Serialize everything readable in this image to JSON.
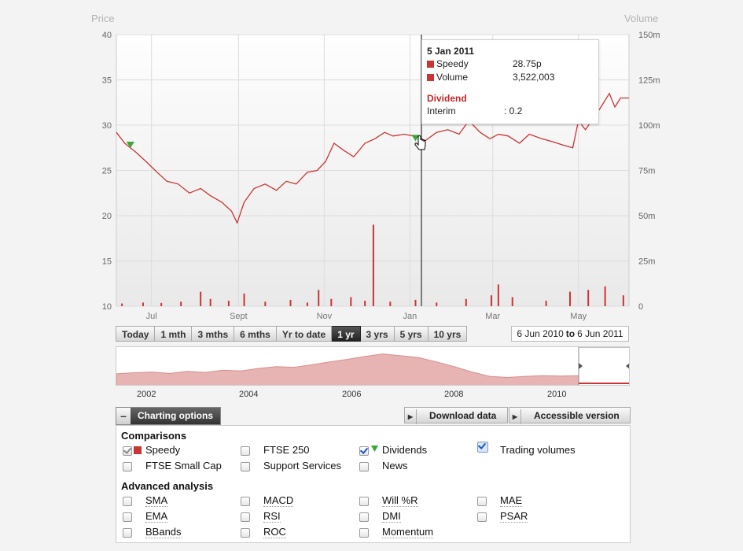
{
  "chart_data": {
    "type": "line",
    "title": "",
    "ylabel": "Price",
    "ylabel_right": "Volume",
    "ylim": [
      10,
      40
    ],
    "yticks": [
      "40",
      "35",
      "30",
      "25",
      "20",
      "15",
      "10"
    ],
    "ylim_right": [
      0,
      150000000
    ],
    "yticks_right": [
      "150m",
      "125m",
      "100m",
      "75m",
      "50m",
      "25m",
      "0"
    ],
    "xlim": [
      "2010-06-06",
      "2011-06-06"
    ],
    "xticks": [
      {
        "label": "Jul",
        "date": "2010-07-01"
      },
      {
        "label": "Sept",
        "date": "2010-09-01"
      },
      {
        "label": "Nov",
        "date": "2010-11-01"
      },
      {
        "label": "Jan",
        "date": "2011-01-01"
      },
      {
        "label": "Mar",
        "date": "2011-03-01"
      },
      {
        "label": "May",
        "date": "2011-05-01"
      }
    ],
    "grid": true,
    "series": [
      {
        "name": "Speedy",
        "color": "#cc3333",
        "points": [
          [
            "2010-06-06",
            29.2
          ],
          [
            "2010-06-12",
            28.0
          ],
          [
            "2010-06-20",
            27.0
          ],
          [
            "2010-06-27",
            26.0
          ],
          [
            "2010-07-05",
            24.8
          ],
          [
            "2010-07-12",
            23.8
          ],
          [
            "2010-07-20",
            23.5
          ],
          [
            "2010-07-28",
            22.5
          ],
          [
            "2010-08-05",
            23.0
          ],
          [
            "2010-08-12",
            22.2
          ],
          [
            "2010-08-20",
            21.5
          ],
          [
            "2010-08-27",
            20.5
          ],
          [
            "2010-08-31",
            19.2
          ],
          [
            "2010-09-05",
            21.5
          ],
          [
            "2010-09-12",
            23.0
          ],
          [
            "2010-09-20",
            23.5
          ],
          [
            "2010-09-28",
            22.8
          ],
          [
            "2010-10-05",
            23.8
          ],
          [
            "2010-10-12",
            23.5
          ],
          [
            "2010-10-20",
            24.8
          ],
          [
            "2010-10-27",
            25.0
          ],
          [
            "2010-11-02",
            26.0
          ],
          [
            "2010-11-08",
            28.0
          ],
          [
            "2010-11-15",
            27.2
          ],
          [
            "2010-11-22",
            26.5
          ],
          [
            "2010-11-30",
            28.0
          ],
          [
            "2010-12-07",
            28.5
          ],
          [
            "2010-12-14",
            29.2
          ],
          [
            "2010-12-20",
            28.8
          ],
          [
            "2010-12-28",
            29.0
          ],
          [
            "2011-01-05",
            28.75
          ],
          [
            "2011-01-12",
            28.3
          ],
          [
            "2011-01-20",
            29.2
          ],
          [
            "2011-01-28",
            29.5
          ],
          [
            "2011-02-05",
            29.0
          ],
          [
            "2011-02-12",
            30.5
          ],
          [
            "2011-02-20",
            29.2
          ],
          [
            "2011-02-27",
            28.5
          ],
          [
            "2011-03-05",
            29.0
          ],
          [
            "2011-03-12",
            28.8
          ],
          [
            "2011-03-20",
            28.0
          ],
          [
            "2011-03-27",
            29.0
          ],
          [
            "2011-04-05",
            28.5
          ],
          [
            "2011-04-12",
            28.2
          ],
          [
            "2011-04-20",
            27.8
          ],
          [
            "2011-04-27",
            27.5
          ],
          [
            "2011-05-01",
            30.5
          ],
          [
            "2011-05-06",
            29.5
          ],
          [
            "2011-05-12",
            30.8
          ],
          [
            "2011-05-17",
            32.0
          ],
          [
            "2011-05-23",
            33.5
          ],
          [
            "2011-05-27",
            32.0
          ],
          [
            "2011-05-31",
            33.0
          ],
          [
            "2011-06-06",
            33.0
          ]
        ]
      },
      {
        "name": "Volume",
        "color": "#cc3333",
        "bars": [
          [
            "2010-06-10",
            1500000
          ],
          [
            "2010-06-25",
            2000000
          ],
          [
            "2010-07-08",
            1800000
          ],
          [
            "2010-07-22",
            2500000
          ],
          [
            "2010-08-05",
            8000000
          ],
          [
            "2010-08-12",
            4000000
          ],
          [
            "2010-08-25",
            3000000
          ],
          [
            "2010-09-05",
            7000000
          ],
          [
            "2010-09-20",
            2500000
          ],
          [
            "2010-10-08",
            3500000
          ],
          [
            "2010-10-20",
            2000000
          ],
          [
            "2010-10-28",
            9000000
          ],
          [
            "2010-11-06",
            4000000
          ],
          [
            "2010-11-20",
            5000000
          ],
          [
            "2010-11-30",
            3000000
          ],
          [
            "2010-12-06",
            45000000
          ],
          [
            "2010-12-18",
            2500000
          ],
          [
            "2011-01-05",
            3522003
          ],
          [
            "2011-01-20",
            2000000
          ],
          [
            "2011-02-10",
            4000000
          ],
          [
            "2011-02-28",
            6000000
          ],
          [
            "2011-03-05",
            12000000
          ],
          [
            "2011-03-15",
            5000000
          ],
          [
            "2011-04-08",
            3000000
          ],
          [
            "2011-04-25",
            8000000
          ],
          [
            "2011-05-08",
            9000000
          ],
          [
            "2011-05-20",
            11000000
          ],
          [
            "2011-06-02",
            6000000
          ]
        ]
      }
    ],
    "dividend_markers": [
      "2010-06-16",
      "2011-01-05"
    ],
    "annotations": []
  },
  "tooltip": {
    "date": "5 Jan 2011",
    "price_label": "Speedy",
    "price_value": "28.75p",
    "volume_label": "Volume",
    "volume_value": "3,522,003",
    "dividend_header": "Dividend",
    "interim_label": "Interim",
    "interim_value": ": 0.2"
  },
  "range_buttons": [
    {
      "label": "Today",
      "active": false
    },
    {
      "label": "1 mth",
      "active": false
    },
    {
      "label": "3 mths",
      "active": false
    },
    {
      "label": "6 mths",
      "active": false
    },
    {
      "label": "Yr to date",
      "active": false
    },
    {
      "label": "1 yr",
      "active": true
    },
    {
      "label": "3 yrs",
      "active": false
    },
    {
      "label": "5 yrs",
      "active": false
    },
    {
      "label": "10 yrs",
      "active": false
    }
  ],
  "date_range": {
    "from": "6 Jun 2010",
    "to_word": "to",
    "to": "6 Jun 2011"
  },
  "navigator": {
    "year_labels": [
      "2002",
      "2004",
      "2006",
      "2008",
      "2010"
    ],
    "history": [
      3.5,
      3.8,
      4.0,
      3.6,
      4.2,
      3.9,
      4.5,
      4.3,
      5.0,
      5.5,
      5.3,
      6.0,
      6.8,
      7.5,
      8.3,
      9.0,
      8.5,
      8.0,
      6.8,
      5.5,
      4.0,
      2.8,
      2.5,
      2.8,
      3.0,
      2.9,
      3.0
    ]
  },
  "options": {
    "toggle_label": "Charting options",
    "download_label": "Download data",
    "accessible_label": "Accessible version",
    "comparisons_title": "Comparisons",
    "comparisons": {
      "speedy": "Speedy",
      "ftse250": "FTSE 250",
      "dividends": "Dividends",
      "trading_volumes": "Trading volumes",
      "ftse_small_cap": "FTSE Small Cap",
      "support_services": "Support Services",
      "news": "News"
    },
    "advanced_title": "Advanced analysis",
    "advanced": {
      "sma": "SMA",
      "macd": "MACD",
      "will_r": "Will %R",
      "mae": "MAE",
      "ema": "EMA",
      "rsi": "RSI",
      "dmi": "DMI",
      "psar": "PSAR",
      "bbands": "BBands",
      "roc": "ROC",
      "momentum": "Momentum"
    }
  },
  "colors": {
    "accent": "#cc3333",
    "marker": "#33aa33",
    "checkbox": "#1c58c3"
  }
}
